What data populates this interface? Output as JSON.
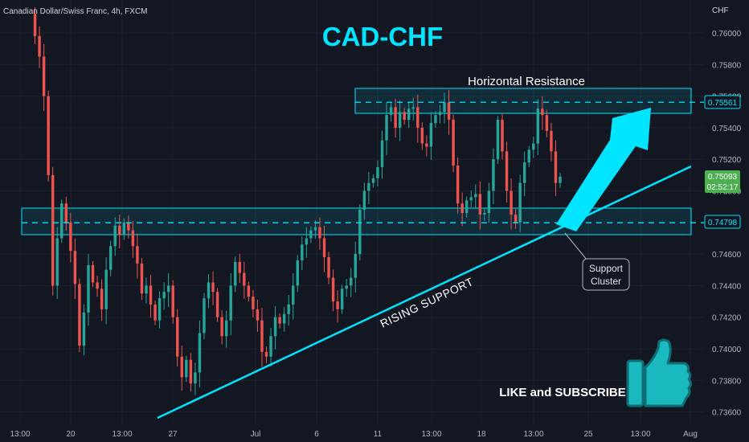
{
  "header": {
    "symbol_label": "Canadian Dollar/Swiss Franc, 4h, FXCM"
  },
  "chart_title": "CAD-CHF",
  "chart_data": {
    "type": "candlestick",
    "currency_unit": "CHF",
    "y_range": [
      0.7355,
      0.7615
    ],
    "y_ticks": [
      "0.76000",
      "0.75800",
      "0.75600",
      "0.75400",
      "0.75200",
      "0.75000",
      "0.74600",
      "0.74400",
      "0.74200",
      "0.74000",
      "0.73800",
      "0.73600"
    ],
    "x_ticks": [
      "13:00",
      "20",
      "13:00",
      "27",
      "Jul",
      "6",
      "11",
      "13:00",
      "18",
      "13:00",
      "25",
      "13:00",
      "Aug"
    ],
    "price_labels": {
      "resistance": "0.75561",
      "current": "0.75093",
      "countdown": "02:52:17",
      "support": "0.74798"
    },
    "resistance_level": 0.75561,
    "support_level": 0.74798,
    "close_series": [
      0.7612,
      0.7598,
      0.7585,
      0.756,
      0.751,
      0.744,
      0.747,
      0.7492,
      0.748,
      0.7462,
      0.7441,
      0.7402,
      0.7423,
      0.7453,
      0.7442,
      0.7438,
      0.7425,
      0.745,
      0.7465,
      0.7478,
      0.7472,
      0.748,
      0.7475,
      0.7465,
      0.7454,
      0.7435,
      0.744,
      0.7428,
      0.7418,
      0.7432,
      0.7436,
      0.744,
      0.742,
      0.7395,
      0.7382,
      0.7393,
      0.7378,
      0.7385,
      0.741,
      0.7432,
      0.7442,
      0.7436,
      0.742,
      0.7408,
      0.7418,
      0.744,
      0.7455,
      0.7448,
      0.744,
      0.7433,
      0.7425,
      0.7418,
      0.7398,
      0.7395,
      0.7408,
      0.742,
      0.7416,
      0.7422,
      0.7428,
      0.744,
      0.7456,
      0.7466,
      0.747,
      0.7475,
      0.7477,
      0.747,
      0.7458,
      0.7445,
      0.743,
      0.7425,
      0.7438,
      0.744,
      0.7445,
      0.746,
      0.7488,
      0.75,
      0.7505,
      0.7508,
      0.7515,
      0.7532,
      0.7548,
      0.7553,
      0.754,
      0.755,
      0.7545,
      0.7552,
      0.7553,
      0.754,
      0.753,
      0.7528,
      0.7543,
      0.7548,
      0.755,
      0.7556,
      0.7545,
      0.7516,
      0.7492,
      0.7486,
      0.7494,
      0.7496,
      0.7498,
      0.7485,
      0.7486,
      0.75,
      0.752,
      0.7545,
      0.7525,
      0.75,
      0.7485,
      0.748,
      0.7505,
      0.7518,
      0.7526,
      0.753,
      0.7552,
      0.7548,
      0.7538,
      0.7525,
      0.7505,
      0.7509
    ],
    "annotations": {
      "resistance_label": "Horizontal Resistance",
      "support_cluster_label": [
        "Support",
        "Cluster"
      ],
      "trendline_label": "RISING SUPPORT",
      "cta_label": "LIKE and SUBSCRIBE"
    },
    "colors": {
      "up": "#26a69a",
      "down": "#ef5350",
      "accent": "#00e5ff",
      "background": "#131722",
      "grid": "#1e222d",
      "current_price": "#4caf50"
    },
    "grid": true
  }
}
